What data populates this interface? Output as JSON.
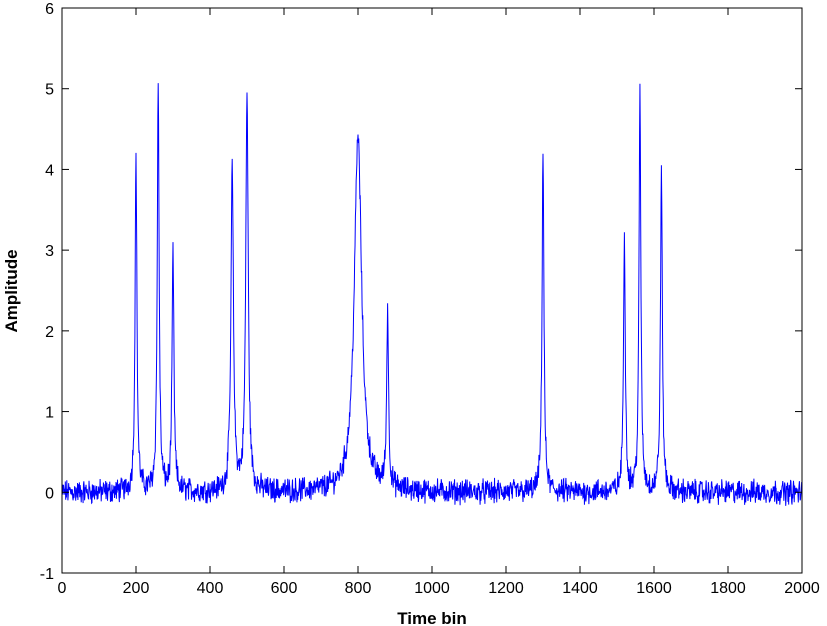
{
  "chart_data": {
    "type": "line",
    "title": "",
    "xlabel": "Time bin",
    "ylabel": "Amplitude",
    "xlim": [
      0,
      2000
    ],
    "ylim": [
      -1,
      6
    ],
    "xticks": [
      0,
      200,
      400,
      600,
      800,
      1000,
      1200,
      1400,
      1600,
      1800,
      2000
    ],
    "yticks": [
      -1,
      0,
      1,
      2,
      3,
      4,
      5,
      6
    ],
    "grid": false,
    "line_color": "#0000ff",
    "noise_level": 0.12,
    "peaks": [
      {
        "x": 200,
        "height": 4.15,
        "width": 3
      },
      {
        "x": 260,
        "height": 5.05,
        "width": 3
      },
      {
        "x": 300,
        "height": 2.95,
        "width": 3
      },
      {
        "x": 460,
        "height": 4.0,
        "width": 4
      },
      {
        "x": 500,
        "height": 4.9,
        "width": 4
      },
      {
        "x": 800,
        "height": 4.4,
        "width": 12
      },
      {
        "x": 880,
        "height": 2.2,
        "width": 3
      },
      {
        "x": 1300,
        "height": 4.25,
        "width": 3
      },
      {
        "x": 1520,
        "height": 3.15,
        "width": 3
      },
      {
        "x": 1562,
        "height": 4.9,
        "width": 3
      },
      {
        "x": 1620,
        "height": 4.0,
        "width": 3
      }
    ],
    "n_samples": 2000
  }
}
